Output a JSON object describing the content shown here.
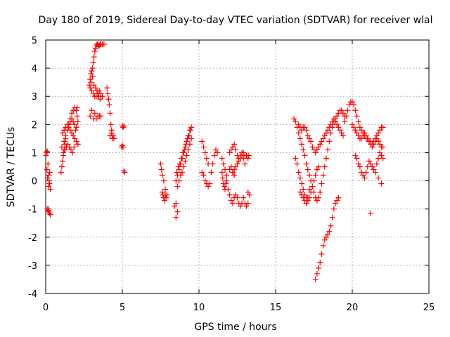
{
  "chart_data": {
    "type": "scatter",
    "title": "Day 180 of 2019, Sidereal Day-to-day VTEC variation (SDTVAR) for receiver wlal",
    "xlabel": "GPS time / hours",
    "ylabel": "SDTVAR / TECUs",
    "xlim": [
      0,
      25
    ],
    "ylim": [
      -4,
      5
    ],
    "xticks": [
      0,
      5,
      10,
      15,
      20,
      25
    ],
    "yticks": [
      -4,
      -3,
      -2,
      -1,
      0,
      1,
      2,
      3,
      4,
      5
    ],
    "grid": true,
    "marker": "+",
    "marker_color": "#ff0000",
    "series": [
      {
        "name": "SDTVAR",
        "x": [
          0.02,
          0.05,
          0.1,
          0.15,
          0.2,
          0.25,
          0.3,
          0.08,
          0.12,
          0.18,
          0.22,
          0.26,
          0.2,
          0.15,
          0.1,
          0.18,
          0.25,
          0.3,
          1.0,
          1.05,
          1.1,
          1.15,
          1.2,
          1.25,
          1.3,
          1.4,
          1.5,
          1.6,
          1.7,
          1.8,
          1.9,
          2.0,
          2.05,
          2.1,
          1.2,
          1.3,
          1.4,
          1.5,
          1.6,
          1.7,
          1.8,
          1.9,
          2.0,
          1.1,
          1.2,
          1.3,
          1.4,
          1.5,
          1.6,
          1.7,
          1.8,
          1.9,
          2.0,
          2.1,
          1.05,
          1.15,
          1.25,
          1.35,
          1.45,
          1.55,
          1.65,
          1.75,
          1.85,
          1.95,
          2.05,
          2.85,
          2.9,
          2.95,
          3.0,
          3.05,
          3.1,
          3.15,
          3.2,
          3.25,
          3.3,
          3.35,
          3.4,
          3.45,
          3.5,
          3.55,
          3.6,
          3.7,
          3.8,
          2.9,
          3.0,
          3.1,
          3.2,
          3.3,
          3.4,
          3.5,
          3.6,
          3.7,
          2.95,
          3.05,
          3.15,
          3.25,
          3.35,
          3.45,
          3.55,
          3.0,
          3.2,
          3.4,
          3.6,
          2.9,
          3.1,
          3.3,
          3.5,
          4.0,
          4.05,
          4.1,
          4.15,
          4.2,
          4.25,
          4.3,
          4.35,
          4.2,
          4.3,
          4.4,
          4.45,
          5.0,
          5.05,
          5.1,
          4.95,
          5.0,
          5.05,
          5.1,
          5.15,
          7.5,
          7.55,
          7.6,
          7.7,
          7.8,
          7.9,
          7.6,
          7.65,
          7.7,
          7.75,
          7.8,
          7.85,
          8.5,
          8.6,
          8.7,
          8.8,
          8.9,
          9.0,
          9.1,
          9.2,
          9.3,
          9.4,
          9.5,
          8.6,
          8.7,
          8.8,
          8.9,
          9.0,
          9.1,
          9.2,
          9.3,
          9.4,
          9.5,
          8.55,
          8.65,
          8.75,
          8.85,
          8.95,
          9.05,
          9.15,
          9.25,
          9.35,
          9.45,
          8.5,
          8.6,
          8.4,
          8.5,
          10.2,
          10.3,
          10.4,
          10.5,
          10.6,
          10.2,
          10.3,
          10.4,
          10.5,
          10.6,
          10.7,
          10.8,
          10.9,
          11.0,
          11.1,
          11.2,
          11.5,
          11.6,
          11.7,
          11.8,
          11.5,
          11.55,
          11.6,
          11.65,
          11.7,
          11.75,
          11.8,
          11.9,
          12.0,
          12.1,
          12.2,
          12.3,
          12.4,
          12.5,
          12.6,
          12.7,
          12.8,
          12.9,
          13.0,
          13.1,
          13.2,
          12.0,
          12.1,
          12.2,
          12.3,
          12.4,
          12.5,
          12.6,
          12.7,
          12.8,
          12.9,
          13.0,
          12.2,
          12.3,
          12.4,
          12.5,
          12.6,
          12.7,
          12.8,
          12.9,
          13.0,
          13.1,
          13.2,
          13.25,
          13.2,
          13.3,
          12.0,
          12.1,
          12.2,
          12.3,
          16.2,
          16.3,
          16.4,
          16.5,
          16.6,
          16.7,
          16.8,
          16.9,
          17.0,
          17.1,
          17.2,
          17.3,
          17.4,
          17.5,
          17.6,
          17.7,
          17.8,
          17.9,
          18.0,
          18.1,
          18.2,
          18.3,
          18.4,
          18.5,
          18.6,
          18.7,
          18.8,
          18.9,
          19.0,
          19.1,
          19.2,
          19.3,
          19.4,
          19.5,
          16.5,
          16.6,
          16.7,
          16.8,
          16.9,
          17.0,
          17.1,
          17.2,
          17.3,
          17.4,
          17.5,
          17.6,
          17.7,
          17.8,
          17.9,
          18.0,
          18.1,
          18.2,
          18.3,
          18.4,
          18.5,
          18.6,
          18.7,
          18.8,
          18.9,
          19.0,
          19.1,
          19.2,
          19.3,
          19.4,
          16.3,
          16.4,
          16.5,
          16.6,
          16.7,
          16.8,
          16.9,
          17.0,
          17.1,
          17.2,
          17.3,
          17.4,
          17.5,
          17.6,
          17.7,
          17.8,
          16.6,
          16.7,
          16.8,
          16.9,
          17.0,
          17.1,
          17.2,
          17.6,
          17.7,
          17.8,
          17.9,
          18.0,
          18.1,
          18.2,
          18.3,
          18.4,
          18.5,
          18.6,
          18.7,
          18.8,
          18.9,
          19.0,
          19.1,
          19.5,
          19.6,
          19.7,
          19.8,
          19.9,
          20.0,
          20.1,
          20.2,
          20.3,
          20.4,
          20.5,
          20.6,
          20.7,
          20.8,
          20.9,
          21.0,
          21.1,
          21.2,
          21.3,
          21.4,
          21.5,
          21.6,
          21.7,
          21.8,
          21.9,
          22.0,
          20.0,
          20.1,
          20.2,
          20.3,
          20.4,
          20.5,
          20.6,
          20.7,
          20.8,
          20.9,
          21.0,
          21.1,
          21.2,
          21.3,
          21.4,
          21.5,
          21.6,
          21.7,
          21.8,
          21.9,
          22.0,
          20.2,
          20.3,
          20.4,
          20.5,
          20.6,
          20.7,
          20.8,
          20.9,
          21.0,
          21.1,
          21.2,
          21.3,
          21.4,
          21.6,
          21.7,
          21.8,
          21.9,
          22.0,
          21.2,
          21.5,
          21.7,
          21.9
        ],
        "y": [
          0.9,
          1.0,
          1.05,
          0.6,
          0.2,
          -0.1,
          -0.3,
          0.4,
          0.1,
          -0.2,
          0.0,
          0.3,
          -1.0,
          -1.1,
          -1.0,
          -1.05,
          -1.15,
          -1.2,
          0.3,
          0.5,
          0.7,
          0.9,
          1.1,
          1.3,
          1.5,
          1.8,
          2.0,
          2.2,
          2.4,
          2.5,
          2.6,
          2.5,
          2.3,
          2.1,
          1.4,
          1.6,
          1.8,
          2.0,
          2.1,
          2.2,
          2.1,
          2.0,
          1.9,
          1.7,
          1.8,
          1.9,
          2.0,
          1.9,
          1.8,
          1.7,
          1.6,
          1.5,
          1.4,
          1.3,
          1.2,
          1.0,
          1.1,
          1.2,
          1.3,
          1.2,
          1.1,
          1.0,
          1.2,
          1.8,
          2.6,
          3.4,
          3.6,
          3.8,
          3.9,
          4.0,
          4.2,
          4.4,
          4.6,
          4.7,
          4.8,
          4.85,
          4.85,
          4.8,
          4.8,
          4.85,
          4.85,
          4.85,
          4.85,
          3.3,
          3.2,
          3.1,
          3.0,
          3.0,
          3.1,
          3.2,
          3.1,
          3.0,
          3.5,
          3.7,
          3.4,
          3.3,
          3.2,
          3.0,
          2.9,
          2.5,
          2.4,
          2.3,
          2.3,
          2.3,
          2.2,
          2.2,
          2.3,
          3.3,
          3.1,
          2.9,
          2.7,
          2.4,
          2.0,
          1.7,
          1.5,
          1.6,
          1.8,
          1.6,
          1.5,
          1.95,
          1.9,
          1.95,
          1.2,
          1.25,
          1.2,
          0.35,
          0.3,
          0.6,
          0.4,
          0.2,
          0.0,
          -0.3,
          -0.5,
          -0.4,
          -0.5,
          -0.6,
          -0.7,
          -0.5,
          -0.6,
          0.0,
          0.2,
          0.4,
          0.6,
          0.8,
          1.0,
          1.2,
          1.4,
          1.6,
          1.8,
          1.9,
          -0.2,
          0.0,
          0.2,
          0.3,
          0.5,
          0.7,
          0.9,
          1.1,
          1.3,
          1.5,
          0.3,
          0.5,
          0.6,
          0.8,
          1.0,
          1.1,
          1.3,
          1.5,
          1.6,
          1.8,
          -1.3,
          -1.1,
          -0.9,
          -0.8,
          1.4,
          1.2,
          1.0,
          0.8,
          0.6,
          0.3,
          0.2,
          0.0,
          -0.1,
          -0.2,
          -0.1,
          0.3,
          0.6,
          0.9,
          1.1,
          1.0,
          0.8,
          0.6,
          0.4,
          0.2,
          0.3,
          0.1,
          -0.1,
          -0.2,
          -0.3,
          -0.1,
          0.0,
          -0.3,
          -0.5,
          -0.7,
          -0.8,
          -0.6,
          -0.5,
          -0.6,
          -0.8,
          -0.9,
          -0.8,
          -0.6,
          -0.8,
          -0.9,
          -0.8,
          1.0,
          1.1,
          1.2,
          1.3,
          1.1,
          0.9,
          0.8,
          0.9,
          1.0,
          0.8,
          0.6,
          0.3,
          0.4,
          0.5,
          0.6,
          0.7,
          0.8,
          0.9,
          1.0,
          0.9,
          0.9,
          0.8,
          0.9,
          -0.4,
          -0.5,
          0.4,
          0.5,
          0.3,
          0.2,
          2.2,
          2.1,
          1.9,
          1.7,
          1.5,
          1.3,
          1.1,
          0.9,
          0.6,
          0.4,
          0.2,
          0.0,
          -0.2,
          -0.4,
          -0.6,
          -0.7,
          -0.6,
          -0.4,
          -0.1,
          0.2,
          0.5,
          0.8,
          1.1,
          1.4,
          1.7,
          1.9,
          2.1,
          2.2,
          2.3,
          2.4,
          2.5,
          2.5,
          2.4,
          2.3,
          2.0,
          1.9,
          1.8,
          1.9,
          1.9,
          1.8,
          1.6,
          1.5,
          1.4,
          1.2,
          1.1,
          1.0,
          1.1,
          1.2,
          1.3,
          1.4,
          1.5,
          1.6,
          1.7,
          1.8,
          1.9,
          2.0,
          2.1,
          2.2,
          2.1,
          2.0,
          1.9,
          1.8,
          1.7,
          1.6,
          0.8,
          0.6,
          0.3,
          0.1,
          -0.1,
          -0.3,
          -0.5,
          -0.6,
          -0.7,
          -0.6,
          -0.4,
          -0.2,
          0.0,
          0.2,
          0.4,
          0.5,
          -0.4,
          -0.5,
          -0.6,
          -0.7,
          -0.8,
          -0.6,
          -0.3,
          -3.5,
          -3.3,
          -3.1,
          -2.9,
          -2.6,
          -2.3,
          -2.1,
          -2.0,
          -1.9,
          -1.8,
          -1.6,
          -1.3,
          -1.0,
          -0.8,
          -0.7,
          -0.6,
          2.1,
          2.3,
          2.5,
          2.7,
          2.8,
          2.8,
          2.7,
          2.5,
          2.3,
          2.1,
          1.9,
          1.8,
          1.7,
          1.6,
          1.5,
          1.5,
          1.4,
          1.3,
          1.2,
          1.3,
          1.4,
          1.5,
          1.4,
          1.3,
          1.2,
          1.2,
          2.0,
          1.9,
          1.8,
          1.7,
          1.6,
          1.5,
          1.5,
          1.6,
          1.7,
          1.6,
          1.5,
          1.4,
          1.4,
          1.3,
          1.4,
          1.5,
          1.6,
          1.7,
          1.8,
          1.9,
          1.9,
          0.9,
          0.8,
          0.6,
          0.5,
          0.3,
          0.2,
          0.1,
          0.3,
          0.5,
          0.7,
          0.6,
          0.5,
          0.4,
          0.6,
          0.8,
          1.0,
          0.9,
          0.8,
          -1.15,
          0.3,
          0.1,
          -0.1
        ]
      }
    ]
  }
}
